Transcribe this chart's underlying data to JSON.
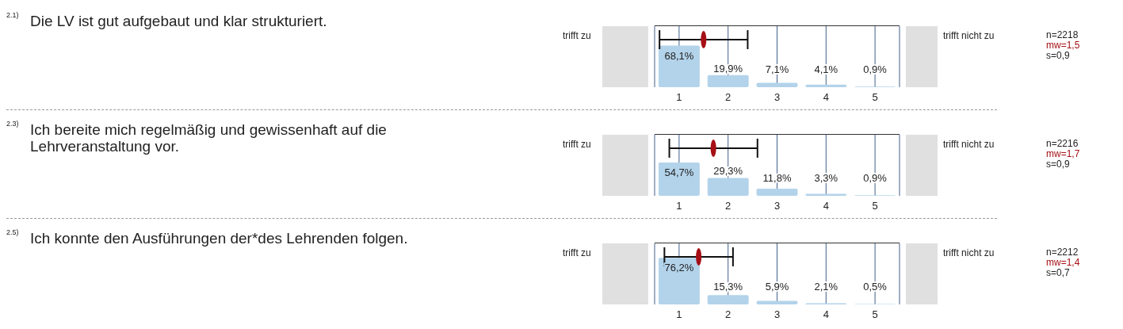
{
  "chart_data": [
    {
      "type": "bar",
      "annotations": [
        "2.1)",
        "Die LV ist gut aufgebaut und klar strukturiert.",
        "trifft zu",
        "trifft nicht zu",
        "n=2218",
        "mw=1,5",
        "s=0,9"
      ],
      "x": [
        1,
        2,
        3,
        4,
        5
      ],
      "xlim": [
        0.5,
        5.5
      ],
      "xticks": [
        1,
        2,
        3,
        4,
        5
      ],
      "grid": "x",
      "series": [
        {
          "color": "#b3d3ea",
          "values": [
            68.1,
            19.9,
            7.1,
            4.1,
            0.9
          ],
          "value_labels": [
            "68,1%",
            "19,9%",
            "7,1%",
            "4,1%",
            "0,9%"
          ]
        },
        {
          "type": "scatter",
          "color": "#a50f15",
          "x": [
            1.5
          ],
          "values": [
            78
          ],
          "xerrors": [
            0.9
          ]
        }
      ]
    },
    {
      "type": "bar",
      "annotations": [
        "2.3)",
        "Ich bereite mich regelmäßig und gewissenhaft auf die Lehrveranstaltung vor.",
        "trifft zu",
        "trifft nicht zu",
        "n=2216",
        "mw=1,7",
        "s=0,9"
      ],
      "x": [
        1,
        2,
        3,
        4,
        5
      ],
      "xlim": [
        0.5,
        5.5
      ],
      "xticks": [
        1,
        2,
        3,
        4,
        5
      ],
      "grid": "x",
      "series": [
        {
          "color": "#b3d3ea",
          "values": [
            54.7,
            29.3,
            11.8,
            3.3,
            0.9
          ],
          "value_labels": [
            "54,7%",
            "29,3%",
            "11,8%",
            "3,3%",
            "0,9%"
          ]
        },
        {
          "type": "scatter",
          "color": "#a50f15",
          "x": [
            1.7
          ],
          "values": [
            78
          ],
          "xerrors": [
            0.9
          ]
        }
      ]
    },
    {
      "type": "bar",
      "annotations": [
        "2.5)",
        "Ich konnte den Ausführungen der*des Lehrenden folgen.",
        "trifft zu",
        "trifft nicht zu",
        "n=2212",
        "mw=1,4",
        "s=0,7"
      ],
      "x": [
        1,
        2,
        3,
        4,
        5
      ],
      "xlim": [
        0.5,
        5.5
      ],
      "xticks": [
        1,
        2,
        3,
        4,
        5
      ],
      "grid": "x",
      "series": [
        {
          "color": "#b3d3ea",
          "values": [
            76.2,
            15.3,
            5.9,
            2.1,
            0.5
          ],
          "value_labels": [
            "76,2%",
            "15,3%",
            "5,9%",
            "2,1%",
            "0,5%"
          ]
        },
        {
          "type": "scatter",
          "color": "#a50f15",
          "x": [
            1.4
          ],
          "values": [
            78
          ],
          "xerrors": [
            0.7
          ]
        }
      ]
    }
  ]
}
